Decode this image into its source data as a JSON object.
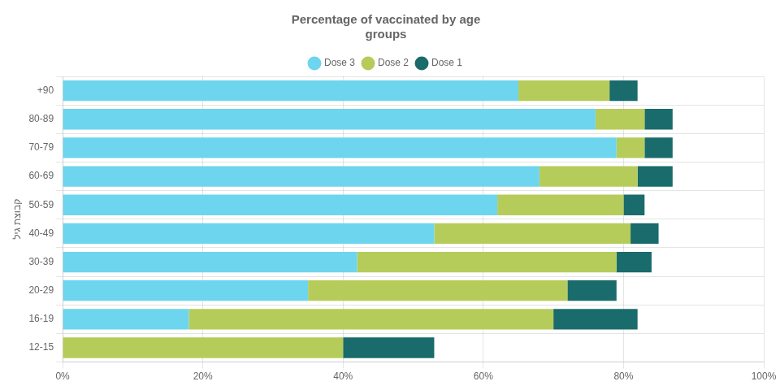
{
  "chart_data": {
    "type": "bar",
    "orientation": "horizontal",
    "stacked": true,
    "title": [
      "Percentage of vaccinated by age",
      "groups"
    ],
    "ylabel": "קבוצת גיל",
    "categories": [
      "+90",
      "80-89",
      "70-79",
      "60-69",
      "50-59",
      "40-49",
      "30-39",
      "20-29",
      "16-19",
      "12-15"
    ],
    "series": [
      {
        "name": "Dose 3",
        "color": "#6dd5ed",
        "values": [
          65,
          76,
          79,
          68,
          62,
          53,
          42,
          35,
          18,
          0
        ]
      },
      {
        "name": "Dose 2",
        "color": "#b5cc5a",
        "values": [
          13,
          7,
          4,
          14,
          18,
          28,
          37,
          37,
          52,
          40
        ]
      },
      {
        "name": "Dose 1",
        "color": "#1a6b6b",
        "values": [
          4,
          4,
          4,
          5,
          3,
          4,
          5,
          7,
          12,
          13
        ]
      }
    ],
    "xlim": [
      0,
      100
    ],
    "xticks": [
      {
        "value": 0,
        "label": "0%"
      },
      {
        "value": 20,
        "label": "20%"
      },
      {
        "value": 40,
        "label": "40%"
      },
      {
        "value": 60,
        "label": "60%"
      },
      {
        "value": 80,
        "label": "80%"
      },
      {
        "value": 100,
        "label": "100%"
      }
    ],
    "grid": true,
    "legend": "top"
  }
}
